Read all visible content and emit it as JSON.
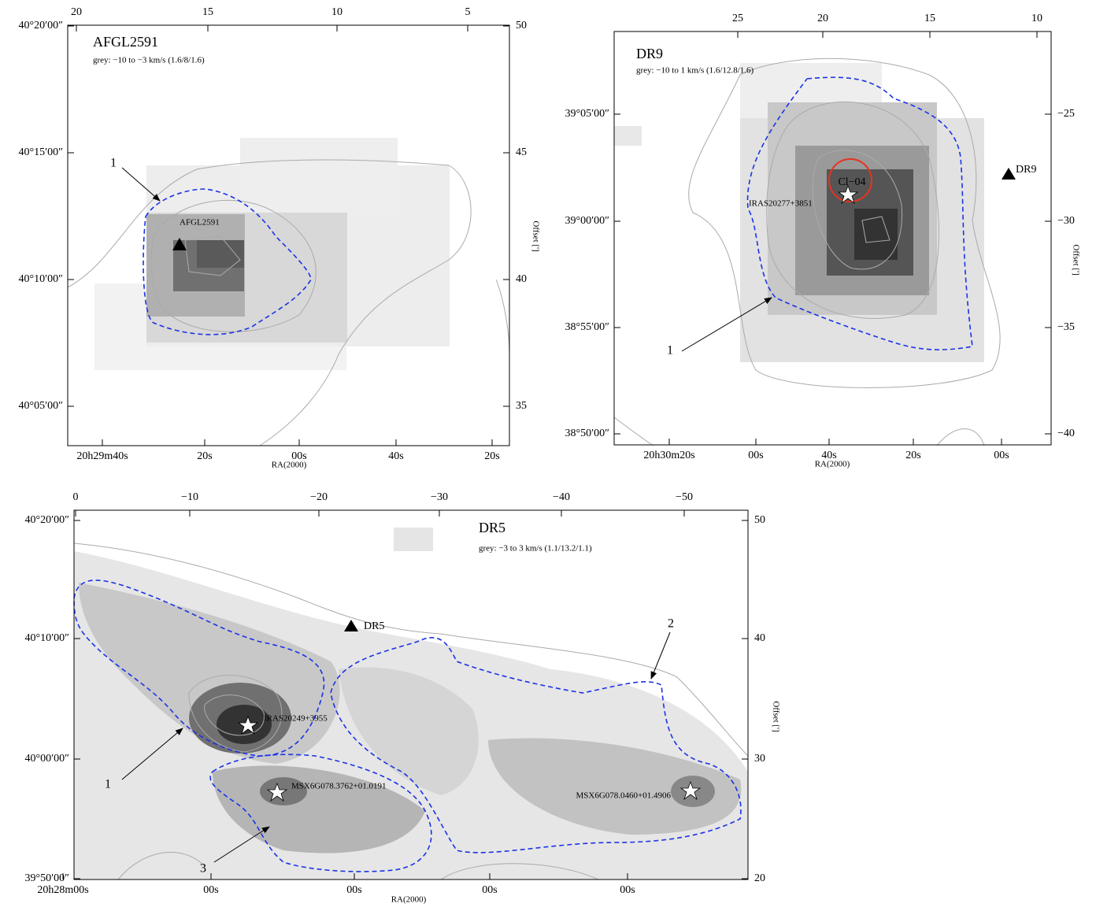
{
  "panels": [
    {
      "title": "AFGL2591",
      "subtitle": "grey:    −10 to −3 km/s (1.6/8/1.6)",
      "x_label": "RA(2000)",
      "y2_label": "Offset [']",
      "top_ticks": [
        "20",
        "15",
        "10",
        "5"
      ],
      "left_ticks": [
        "40°20′00″",
        "40°15′00″",
        "40°10′00″",
        "40°05′00″"
      ],
      "right_ticks": [
        "50",
        "45",
        "40",
        "35"
      ],
      "bottom_ticks": [
        "20h29m40s",
        "20s",
        "00s",
        "40s",
        "20s"
      ],
      "annotations": [
        "1",
        "AFGL2591"
      ]
    },
    {
      "title": "DR9",
      "subtitle": "grey: −10 to 1 km/s (1.6/12.8/1.6)",
      "x_label": "RA(2000)",
      "y2_label": "Offset [']",
      "top_ticks": [
        "25",
        "20",
        "15",
        "10"
      ],
      "left_ticks": [
        "39°05′00″",
        "39°00′00″",
        "38°55′00″",
        "38°50′00″"
      ],
      "right_ticks": [
        "−25",
        "−30",
        "−35",
        "−40"
      ],
      "bottom_ticks": [
        "20h30m20s",
        "00s",
        "40s",
        "20s",
        "00s"
      ],
      "annotations": [
        "Cl−04",
        "IRAS20277+3851",
        "DR9",
        "1"
      ]
    },
    {
      "title": "DR5",
      "subtitle": "grey:   −3 to 3 km/s (1.1/13.2/1.1)",
      "x_label": "RA(2000)",
      "y2_label": "Offset [']",
      "top_ticks": [
        "0",
        "−10",
        "−20",
        "−30",
        "−40",
        "−50"
      ],
      "left_ticks": [
        "40°20′00″",
        "40°10′00″",
        "40°00′00″",
        "39°50′00″"
      ],
      "right_ticks": [
        "50",
        "40",
        "30",
        "20"
      ],
      "bottom_ticks": [
        "20h28m00s",
        "00s",
        "00s",
        "00s",
        "00s"
      ],
      "annotations": [
        "DR5",
        "IRAS20249+3955",
        "MSX6G078.3762+01.0191",
        "MSX6G078.0460+01.4906",
        "1",
        "2",
        "3"
      ]
    }
  ]
}
